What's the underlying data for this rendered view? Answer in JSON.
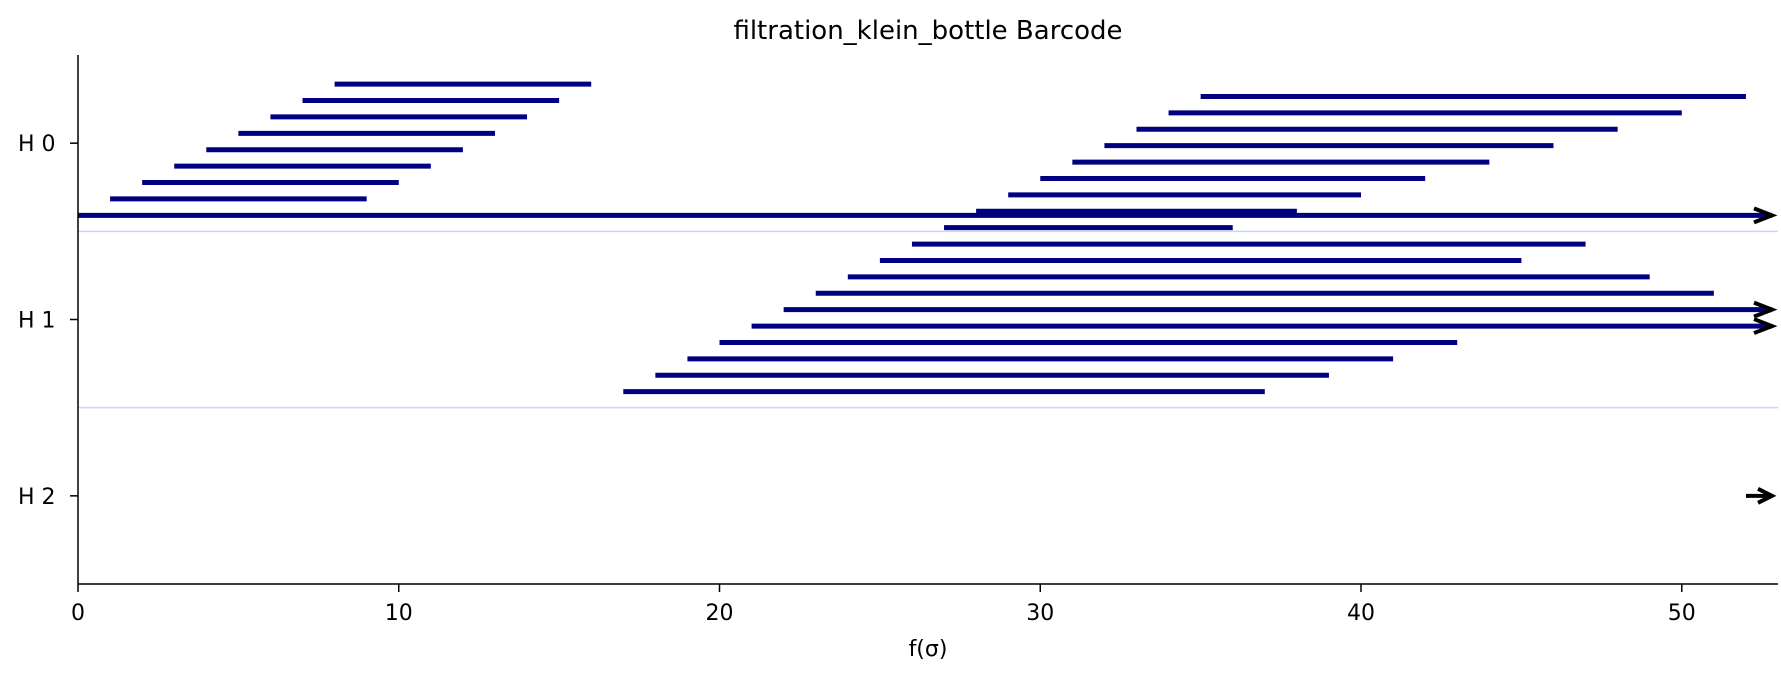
{
  "chart_data": {
    "type": "barcode",
    "title": "filtration_klein_bottle Barcode",
    "xlabel": "f(σ)",
    "ylabel": "",
    "xlim": [
      0,
      53
    ],
    "x_ticks": [
      0,
      10,
      20,
      30,
      40,
      50
    ],
    "grid": false,
    "groups": [
      {
        "label": "H 0",
        "bars": [
          {
            "birth": 8,
            "death": 16
          },
          {
            "birth": 7,
            "death": 15
          },
          {
            "birth": 6,
            "death": 14
          },
          {
            "birth": 5,
            "death": 13
          },
          {
            "birth": 4,
            "death": 12
          },
          {
            "birth": 3,
            "death": 11
          },
          {
            "birth": 2,
            "death": 10
          },
          {
            "birth": 1,
            "death": 9
          },
          {
            "birth": 0,
            "death": null
          }
        ]
      },
      {
        "label": "H 1",
        "bars": [
          {
            "birth": 35,
            "death": 52
          },
          {
            "birth": 34,
            "death": 50
          },
          {
            "birth": 33,
            "death": 48
          },
          {
            "birth": 32,
            "death": 46
          },
          {
            "birth": 31,
            "death": 44
          },
          {
            "birth": 30,
            "death": 42
          },
          {
            "birth": 29,
            "death": 40
          },
          {
            "birth": 28,
            "death": 38
          },
          {
            "birth": 27,
            "death": 36
          },
          {
            "birth": 26,
            "death": 47
          },
          {
            "birth": 25,
            "death": 45
          },
          {
            "birth": 24,
            "death": 49
          },
          {
            "birth": 23,
            "death": 51
          },
          {
            "birth": 22,
            "death": null
          },
          {
            "birth": 21,
            "death": null
          },
          {
            "birth": 20,
            "death": 43
          },
          {
            "birth": 19,
            "death": 41
          },
          {
            "birth": 18,
            "death": 39
          },
          {
            "birth": 17,
            "death": 37
          }
        ]
      },
      {
        "label": "H 2",
        "bars": [
          {
            "birth": 52,
            "death": null
          }
        ]
      }
    ],
    "colors": {
      "bar": "#000080",
      "separator": "#c6d9ef",
      "arrow": "#000000"
    }
  }
}
